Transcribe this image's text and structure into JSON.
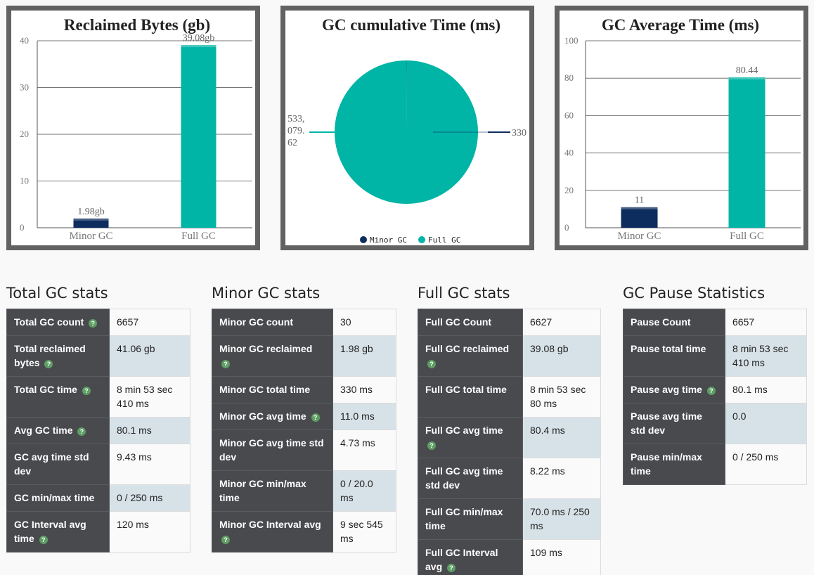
{
  "charts": {
    "reclaimed": {
      "title": "Reclaimed Bytes (gb)"
    },
    "cumulative": {
      "title": "GC cumulative Time (ms)"
    },
    "average": {
      "title": "GC Average Time (ms)"
    }
  },
  "colors": {
    "minor": "#0d2d5e",
    "full": "#00b4a6"
  },
  "chart_data": [
    {
      "type": "bar",
      "title": "Reclaimed Bytes (gb)",
      "categories": [
        "Minor GC",
        "Full GC"
      ],
      "values": [
        1.98,
        39.08
      ],
      "data_labels": [
        "1.98gb",
        "39.08gb"
      ],
      "yticks": [
        "0",
        "10",
        "20",
        "30",
        "40"
      ],
      "ylim": [
        0,
        40
      ],
      "grid": true,
      "colors": [
        "#0d2d5e",
        "#00b4a6"
      ]
    },
    {
      "type": "pie",
      "title": "GC cumulative Time (ms)",
      "labels": [
        "Minor GC",
        "Full GC"
      ],
      "values": [
        330,
        533079.62
      ],
      "data_labels": [
        "330",
        "533,079.62"
      ],
      "data_label_lines": [
        "533,",
        "079.",
        "62"
      ],
      "legend": "bottom",
      "colors": [
        "#0d2d5e",
        "#00b4a6"
      ]
    },
    {
      "type": "bar",
      "title": "GC Average Time (ms)",
      "categories": [
        "Minor GC",
        "Full GC"
      ],
      "values": [
        11,
        80.44
      ],
      "data_labels": [
        "11",
        "80.44"
      ],
      "yticks": [
        "0",
        "20",
        "40",
        "60",
        "80",
        "100"
      ],
      "ylim": [
        0,
        100
      ],
      "grid": true,
      "colors": [
        "#0d2d5e",
        "#00b4a6"
      ]
    }
  ],
  "total": {
    "title": "Total GC stats",
    "rows": [
      {
        "k": "Total GC count",
        "v": "6657"
      },
      {
        "k": "Total reclaimed bytes",
        "v": "41.06 gb"
      },
      {
        "k": "Total GC time",
        "v": "8 min 53 sec 410 ms"
      },
      {
        "k": "Avg GC time",
        "v": "80.1 ms"
      },
      {
        "k": "GC avg time std dev",
        "v": "9.43 ms"
      },
      {
        "k": "GC min/max time",
        "v": "0 / 250 ms"
      },
      {
        "k": "GC Interval avg time",
        "v": "120 ms"
      }
    ]
  },
  "minor": {
    "title": "Minor GC stats",
    "rows": [
      {
        "k": "Minor GC count",
        "v": "30"
      },
      {
        "k": "Minor GC reclaimed",
        "v": "1.98 gb"
      },
      {
        "k": "Minor GC total time",
        "v": "330 ms"
      },
      {
        "k": "Minor GC avg time",
        "v": "11.0 ms"
      },
      {
        "k": "Minor GC avg time std dev",
        "v": "4.73 ms"
      },
      {
        "k": "Minor GC min/max time",
        "v": "0 / 20.0 ms"
      },
      {
        "k": "Minor GC Interval avg",
        "v": "9 sec 545 ms"
      }
    ]
  },
  "full": {
    "title": "Full GC stats",
    "rows": [
      {
        "k": "Full GC Count",
        "v": "6627"
      },
      {
        "k": "Full GC reclaimed",
        "v": "39.08 gb"
      },
      {
        "k": "Full GC total time",
        "v": "8 min 53 sec 80 ms"
      },
      {
        "k": "Full GC avg time",
        "v": "80.4 ms"
      },
      {
        "k": "Full GC avg time std dev",
        "v": "8.22 ms"
      },
      {
        "k": "Full GC min/max time",
        "v": "70.0 ms / 250 ms"
      },
      {
        "k": "Full GC Interval avg",
        "v": "109 ms"
      }
    ]
  },
  "pause": {
    "title": "GC Pause Statistics",
    "rows": [
      {
        "k": "Pause Count",
        "v": "6657"
      },
      {
        "k": "Pause total time",
        "v": "8 min 53 sec 410 ms"
      },
      {
        "k": "Pause avg time",
        "v": "80.1 ms"
      },
      {
        "k": "Pause avg time std dev",
        "v": "0.0"
      },
      {
        "k": "Pause min/max time",
        "v": "0 / 250 ms"
      }
    ]
  },
  "help_icon": "question-circle-icon",
  "help_glyph": "?"
}
